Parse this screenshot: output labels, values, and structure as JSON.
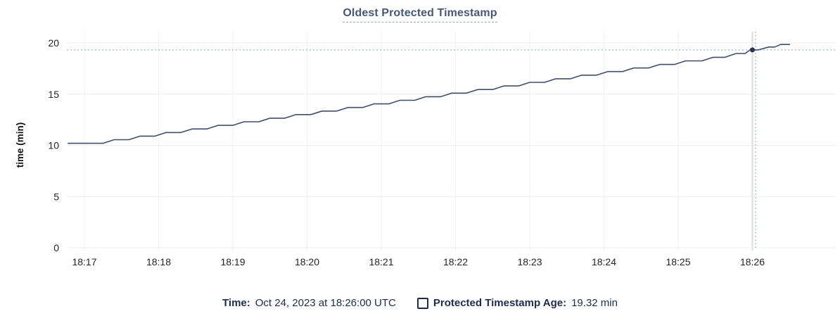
{
  "chart_data": {
    "type": "line",
    "title": "Oldest Protected Timestamp",
    "ylabel": "time (min)",
    "xlabel": "",
    "ylim": [
      0,
      20
    ],
    "y_ticks": [
      0,
      5,
      10,
      15,
      20
    ],
    "x_ticks": [
      "18:17",
      "18:18",
      "18:19",
      "18:20",
      "18:21",
      "18:22",
      "18:23",
      "18:24",
      "18:25",
      "18:26"
    ],
    "x_unit": "minutes after 18:17 UTC",
    "grid": true,
    "legend_position": "bottom",
    "series": [
      {
        "name": "Protected Timestamp Age",
        "points": [
          [
            -0.22,
            10.2
          ],
          [
            0.25,
            10.2
          ],
          [
            0.4,
            10.55
          ],
          [
            0.6,
            10.55
          ],
          [
            0.75,
            10.9
          ],
          [
            0.95,
            10.9
          ],
          [
            1.1,
            11.25
          ],
          [
            1.3,
            11.25
          ],
          [
            1.45,
            11.6
          ],
          [
            1.65,
            11.6
          ],
          [
            1.8,
            11.95
          ],
          [
            2.0,
            11.95
          ],
          [
            2.15,
            12.3
          ],
          [
            2.35,
            12.3
          ],
          [
            2.5,
            12.65
          ],
          [
            2.7,
            12.65
          ],
          [
            2.85,
            13.0
          ],
          [
            3.05,
            13.0
          ],
          [
            3.2,
            13.35
          ],
          [
            3.4,
            13.35
          ],
          [
            3.55,
            13.7
          ],
          [
            3.75,
            13.7
          ],
          [
            3.9,
            14.05
          ],
          [
            4.1,
            14.05
          ],
          [
            4.25,
            14.4
          ],
          [
            4.45,
            14.4
          ],
          [
            4.6,
            14.75
          ],
          [
            4.8,
            14.75
          ],
          [
            4.95,
            15.1
          ],
          [
            5.15,
            15.1
          ],
          [
            5.3,
            15.45
          ],
          [
            5.5,
            15.45
          ],
          [
            5.65,
            15.8
          ],
          [
            5.85,
            15.8
          ],
          [
            6.0,
            16.15
          ],
          [
            6.2,
            16.15
          ],
          [
            6.35,
            16.5
          ],
          [
            6.55,
            16.5
          ],
          [
            6.7,
            16.85
          ],
          [
            6.9,
            16.85
          ],
          [
            7.05,
            17.2
          ],
          [
            7.25,
            17.2
          ],
          [
            7.4,
            17.55
          ],
          [
            7.6,
            17.55
          ],
          [
            7.75,
            17.9
          ],
          [
            7.95,
            17.9
          ],
          [
            8.1,
            18.25
          ],
          [
            8.32,
            18.25
          ],
          [
            8.47,
            18.6
          ],
          [
            8.63,
            18.6
          ],
          [
            8.78,
            18.97
          ],
          [
            8.9,
            18.97
          ],
          [
            8.97,
            19.32
          ],
          [
            9.08,
            19.32
          ],
          [
            9.22,
            19.6
          ],
          [
            9.3,
            19.6
          ],
          [
            9.38,
            19.85
          ],
          [
            9.5,
            19.85
          ]
        ]
      }
    ],
    "hover_point": {
      "x": 9.0,
      "x_tick": "18:26",
      "value": 19.32
    },
    "crosshair_value": 19.32
  },
  "legend": {
    "time_label": "Time:",
    "time_value": "Oct 24, 2023 at 18:26:00 UTC",
    "series_label": "Protected Timestamp Age:",
    "series_value": "19.32 min"
  },
  "colors": {
    "title": "#475977",
    "title_underline": "#98a4bc",
    "line": "#3f4e6a",
    "marker": "#26334d",
    "grid_h": "#ececec",
    "grid_v": "#f2f2f2",
    "grid_hover": "#e2e2e2",
    "crosshair": "#9fb3c4",
    "tick_text": "#242424",
    "axis_title_text": "#111111",
    "legend_text": "#1d2c4e"
  }
}
